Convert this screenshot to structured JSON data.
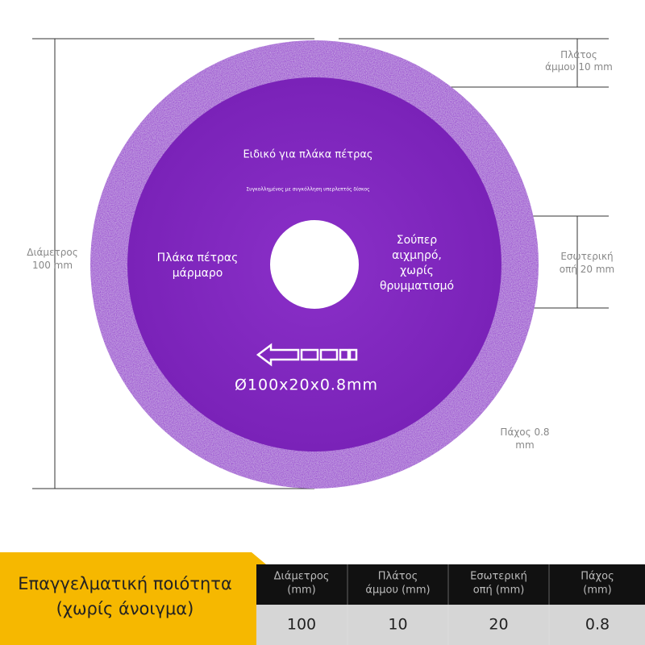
{
  "disc": {
    "title": "Ειδικό για πλάκα πέτρας",
    "subtitle": "Συγκολλημένος με συγκόλληση υπερλεπτός δίσκος",
    "left_text": [
      "Πλάκα πέτρας",
      "μάρμαρο"
    ],
    "right_text": [
      "Σούπερ",
      "αιχμηρό,",
      "χωρίς",
      "θρυμματισμό"
    ],
    "size": "Ø100x20x0.8mm"
  },
  "dimensions": {
    "diameter": [
      "Διάμετρος",
      "100 mm"
    ],
    "rim_width": [
      "Πλάτος",
      "άμμου 10 mm"
    ],
    "inner_hole": [
      "Εσωτερική",
      "οπή 20 mm"
    ],
    "thickness": [
      "Πάχος 0.8",
      "mm"
    ]
  },
  "banner": [
    "Επαγγελματική ποιότητα",
    "(χωρίς άνοιγμα)"
  ],
  "table": {
    "headers": [
      [
        "Διάμετρος",
        "(mm)"
      ],
      [
        "Πλάτος",
        "άμμου (mm)"
      ],
      [
        "Εσωτερική",
        "οπή (mm)"
      ],
      [
        "Πάχος",
        "(mm)"
      ]
    ],
    "values": [
      100,
      10,
      20,
      0.8
    ]
  }
}
